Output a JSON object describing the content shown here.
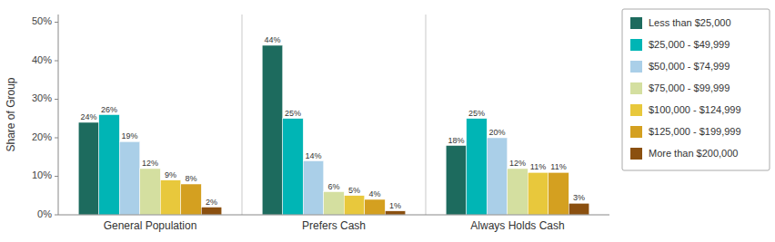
{
  "chart_data": {
    "type": "bar",
    "y_label": "Share of Group",
    "categories": [
      "General Population",
      "Prefers Cash",
      "Always Holds Cash"
    ],
    "series": [
      {
        "name": "Less than $25,000",
        "color": "#1d6b5e",
        "values": [
          24,
          44,
          18
        ],
        "value_labels": [
          "24%",
          "44%",
          "18%"
        ]
      },
      {
        "name": "$25,000 - $49,999",
        "color": "#00b5b5",
        "values": [
          26,
          25,
          25
        ],
        "value_labels": [
          "26%",
          "25%",
          "25%"
        ]
      },
      {
        "name": "$50,000 - $74,999",
        "color": "#aacfe8",
        "values": [
          19,
          14,
          20
        ],
        "value_labels": [
          "19%",
          "14%",
          "20%"
        ]
      },
      {
        "name": "$75,000 - $99,999",
        "color": "#d4dfa0",
        "values": [
          12,
          6,
          12
        ],
        "value_labels": [
          "12%",
          "6%",
          "12%"
        ]
      },
      {
        "name": "$100,000 - $124,999",
        "color": "#e8c83c",
        "values": [
          9,
          5,
          11
        ],
        "value_labels": [
          "9%",
          "5%",
          "11%"
        ]
      },
      {
        "name": "$125,000 - $199,999",
        "color": "#d4a020",
        "values": [
          8,
          4,
          11
        ],
        "value_labels": [
          "8%",
          "4%",
          "11%"
        ]
      },
      {
        "name": "More than $200,000",
        "color": "#8B5010",
        "values": [
          2,
          1,
          3
        ],
        "value_labels": [
          "2%",
          "1%",
          "3%"
        ]
      }
    ],
    "ylim": [
      0,
      52
    ],
    "yticks": [
      {
        "value": 0,
        "label": "0%"
      },
      {
        "value": 10,
        "label": "10%"
      },
      {
        "value": 20,
        "label": "20%"
      },
      {
        "value": 30,
        "label": "30%"
      },
      {
        "value": 40,
        "label": "40%"
      },
      {
        "value": 50,
        "label": "50%"
      }
    ],
    "grid": false,
    "legend": "right",
    "data_labels": true
  }
}
